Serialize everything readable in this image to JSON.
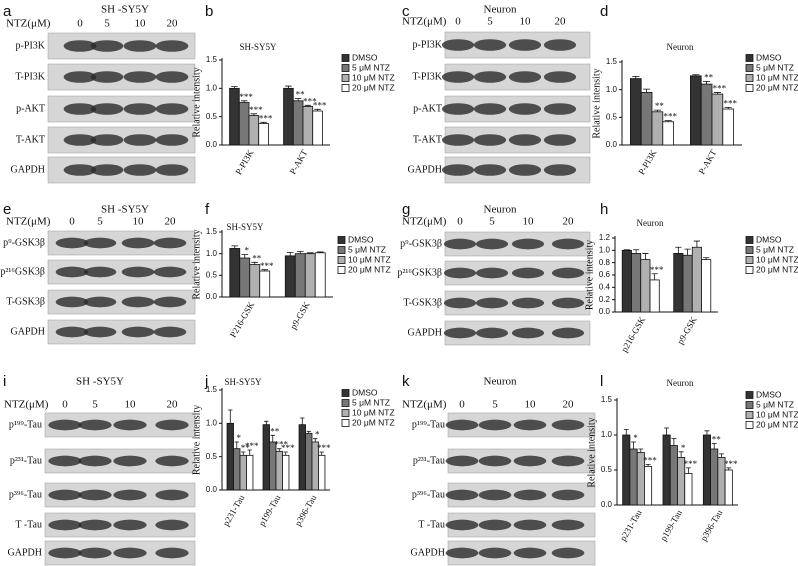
{
  "blots": [
    {
      "panel": "a",
      "title": "SH -SY5Y",
      "dose_header": "NTZ(μM)",
      "doses": [
        0,
        5,
        10,
        20
      ],
      "rows": [
        "p-PI3K",
        "T-PI3K",
        "p-AKT",
        "T-AKT",
        "GAPDH"
      ]
    },
    {
      "panel": "c",
      "title": "Neuron",
      "dose_header": "NTZ(μM)",
      "doses": [
        0,
        5,
        10,
        20
      ],
      "rows": [
        "p-PI3K",
        "T-PI3K",
        "p-AKT",
        "T-AKT",
        "GAPDH"
      ]
    },
    {
      "panel": "e",
      "title": "SH -SY5Y",
      "dose_header": "NTZ(μM)",
      "doses": [
        0,
        5,
        10,
        20
      ],
      "rows": [
        "p⁹-GSK3β",
        "p²¹⁶GSK3β",
        "T-GSK3β",
        "GAPDH"
      ]
    },
    {
      "panel": "g",
      "title": "Neuron",
      "dose_header": "NTZ(μM)",
      "doses": [
        0,
        5,
        10,
        20
      ],
      "rows": [
        "p⁹-GSK3β",
        "p²¹⁶GSK3β",
        "T-GSK3β",
        "GAPDH"
      ]
    },
    {
      "panel": "i",
      "title": "SH -SY5Y",
      "dose_header": "NTZ(μM)",
      "doses": [
        0,
        5,
        10,
        20
      ],
      "rows": [
        "p¹⁹⁹-Tau",
        "p²³¹-Tau",
        "p³⁹⁶-Tau",
        "T -Tau",
        "GAPDH"
      ]
    },
    {
      "panel": "k",
      "title": "Neuron",
      "dose_header": "NTZ(μM)",
      "doses": [
        0,
        5,
        10,
        20
      ],
      "rows": [
        "p¹⁹⁹-Tau",
        "p²³¹-Tau",
        "p³⁹⁶-Tau",
        "T -Tau",
        "GAPDH"
      ]
    }
  ],
  "chart_data": [
    {
      "type": "bar",
      "panel": "b",
      "title": "SH-SY5Y",
      "y_label": "Relative intensity",
      "categories": [
        "P-PI3K",
        "P-AKT"
      ],
      "ylim": [
        0,
        1.5
      ],
      "yticks": [
        {
          "value": 0,
          "label": "0.0"
        },
        0.5,
        {
          "value": 1,
          "label": "1.0"
        },
        1.5
      ],
      "series": [
        {
          "name": "DMSO",
          "color": "#333333",
          "values": [
            1.0,
            1.0
          ],
          "errors": [
            0.03,
            0.04
          ],
          "sig": [
            null,
            null
          ]
        },
        {
          "name": "5  μM NTZ",
          "color": "#777777",
          "values": [
            0.75,
            0.78
          ],
          "errors": [
            0.03,
            0.04
          ],
          "sig": [
            "***",
            "**"
          ]
        },
        {
          "name": "10 μM NTZ",
          "color": "#b0b0b0",
          "values": [
            0.52,
            0.68
          ],
          "errors": [
            0.03,
            0.02
          ],
          "sig": [
            "***",
            "***"
          ]
        },
        {
          "name": "20 μM NTZ",
          "color": "#ffffff",
          "values": [
            0.38,
            0.6
          ],
          "errors": [
            0.02,
            0.03
          ],
          "sig": [
            "***",
            "***"
          ]
        }
      ]
    },
    {
      "type": "bar",
      "panel": "d",
      "title": "Neuron",
      "y_label": "Relative  intensity",
      "categories": [
        "P-PI3K",
        "P-AKT"
      ],
      "ylim": [
        0,
        1.5
      ],
      "yticks": [
        {
          "value": 0,
          "label": "0.0"
        },
        0.5,
        {
          "value": 1,
          "label": "1.0"
        },
        1.5
      ],
      "series": [
        {
          "name": "DMSO",
          "color": "#333333",
          "values": [
            1.2,
            1.25
          ],
          "errors": [
            0.04,
            0.02
          ],
          "sig": [
            null,
            null
          ]
        },
        {
          "name": "5  μM NTZ",
          "color": "#777777",
          "values": [
            0.95,
            1.1
          ],
          "errors": [
            0.06,
            0.05
          ],
          "sig": [
            null,
            "**"
          ]
        },
        {
          "name": "10 μM NTZ",
          "color": "#b0b0b0",
          "values": [
            0.6,
            0.92
          ],
          "errors": [
            0.03,
            0.03
          ],
          "sig": [
            "**",
            "***"
          ]
        },
        {
          "name": "20 μM NTZ",
          "color": "#ffffff",
          "values": [
            0.42,
            0.65
          ],
          "errors": [
            0.02,
            0.03
          ],
          "sig": [
            "***",
            "***"
          ]
        }
      ]
    },
    {
      "type": "bar",
      "panel": "f",
      "title": "SH-SY5Y",
      "y_label": "Relative intensity",
      "categories": [
        "P216-GSK",
        "p9-GSK"
      ],
      "ylim": [
        0,
        1.5
      ],
      "yticks": [
        {
          "value": 0,
          "label": "0.0"
        },
        0.5,
        {
          "value": 1,
          "label": "1.0"
        },
        1.5
      ],
      "series": [
        {
          "name": "DMSO",
          "color": "#333333",
          "values": [
            1.12,
            0.95
          ],
          "errors": [
            0.06,
            0.08
          ],
          "sig": [
            null,
            null
          ]
        },
        {
          "name": "5  μM NTZ",
          "color": "#777777",
          "values": [
            0.9,
            1.0
          ],
          "errors": [
            0.08,
            0.05
          ],
          "sig": [
            "*",
            null
          ]
        },
        {
          "name": "10 μM NTZ",
          "color": "#b0b0b0",
          "values": [
            0.75,
            1.0
          ],
          "errors": [
            0.05,
            0.02
          ],
          "sig": [
            "**",
            null
          ]
        },
        {
          "name": "20 μM NTZ",
          "color": "#ffffff",
          "values": [
            0.6,
            1.02
          ],
          "errors": [
            0.03,
            0.02
          ],
          "sig": [
            "***",
            null
          ]
        }
      ]
    },
    {
      "type": "bar",
      "panel": "h",
      "title": "Neuron",
      "y_label": "Relative  intensity",
      "categories": [
        "p216-GSK",
        "p9-GSK"
      ],
      "ylim": [
        0,
        1.2
      ],
      "yticks": [
        {
          "value": 0,
          "label": "0.0"
        },
        0.2,
        0.4,
        0.6,
        0.8,
        {
          "value": 1,
          "label": "1.0"
        },
        1.2
      ],
      "series": [
        {
          "name": "DMSO",
          "color": "#333333",
          "values": [
            1.0,
            0.95
          ],
          "errors": [
            0.01,
            0.1
          ],
          "sig": [
            null,
            null
          ]
        },
        {
          "name": "5  μM NTZ",
          "color": "#777777",
          "values": [
            0.95,
            0.92
          ],
          "errors": [
            0.06,
            0.1
          ],
          "sig": [
            null,
            null
          ]
        },
        {
          "name": "10 μM NTZ",
          "color": "#b0b0b0",
          "values": [
            0.85,
            1.05
          ],
          "errors": [
            0.1,
            0.1
          ],
          "sig": [
            null,
            null
          ]
        },
        {
          "name": "20 μM NTZ",
          "color": "#ffffff",
          "values": [
            0.52,
            0.85
          ],
          "errors": [
            0.1,
            0.03
          ],
          "sig": [
            "***",
            null
          ]
        }
      ]
    },
    {
      "type": "bar",
      "panel": "j",
      "title": "SH-SY5Y",
      "y_label": "Relative intensity",
      "categories": [
        "p231-Tau",
        "p199-Tau",
        "p396-Tau"
      ],
      "ylim": [
        0,
        1.5
      ],
      "yticks": [
        {
          "value": 0,
          "label": "0.0"
        },
        0.5,
        {
          "value": 1,
          "label": "1.0"
        },
        1.5
      ],
      "series": [
        {
          "name": "DMSO",
          "color": "#333333",
          "values": [
            1.0,
            0.98,
            0.98
          ],
          "errors": [
            0.2,
            0.05,
            0.1
          ],
          "sig": [
            null,
            null,
            null
          ]
        },
        {
          "name": "5  μM NTZ",
          "color": "#777777",
          "values": [
            0.62,
            0.72,
            0.85
          ],
          "errors": [
            0.1,
            0.1,
            0.03
          ],
          "sig": [
            "*",
            "**",
            null
          ]
        },
        {
          "name": "10 μM NTZ",
          "color": "#b0b0b0",
          "values": [
            0.52,
            0.58,
            0.72
          ],
          "errors": [
            0.05,
            0.04,
            0.05
          ],
          "sig": [
            "**",
            "***",
            "*"
          ]
        },
        {
          "name": "20 μM NTZ",
          "color": "#ffffff",
          "values": [
            0.52,
            0.52,
            0.52
          ],
          "errors": [
            0.08,
            0.05,
            0.05
          ],
          "sig": [
            "***",
            "***",
            "***"
          ]
        }
      ]
    },
    {
      "type": "bar",
      "panel": "l",
      "title": "Neuron",
      "y_label": "Relative  intensity",
      "categories": [
        "p231-Tau",
        "p199-Tau",
        "p396-Tau"
      ],
      "ylim": [
        0,
        1.5
      ],
      "yticks": [
        {
          "value": 0,
          "label": "0.0"
        },
        0.5,
        {
          "value": 1,
          "label": "1.0"
        },
        1.5
      ],
      "series": [
        {
          "name": "DMSO",
          "color": "#333333",
          "values": [
            1.0,
            1.0,
            1.0
          ],
          "errors": [
            0.08,
            0.1,
            0.06
          ],
          "sig": [
            null,
            null,
            null
          ]
        },
        {
          "name": "5  μM NTZ",
          "color": "#777777",
          "values": [
            0.8,
            0.85,
            0.8
          ],
          "errors": [
            0.1,
            0.1,
            0.08
          ],
          "sig": [
            "*",
            null,
            "**"
          ]
        },
        {
          "name": "10 μM NTZ",
          "color": "#b0b0b0",
          "values": [
            0.75,
            0.68,
            0.68
          ],
          "errors": [
            0.05,
            0.08,
            0.05
          ],
          "sig": [
            null,
            "*",
            null
          ]
        },
        {
          "name": "20 μM NTZ",
          "color": "#ffffff",
          "values": [
            0.55,
            0.45,
            0.5
          ],
          "errors": [
            0.03,
            0.08,
            0.03
          ],
          "sig": [
            "***",
            "***",
            "***"
          ]
        }
      ]
    }
  ]
}
